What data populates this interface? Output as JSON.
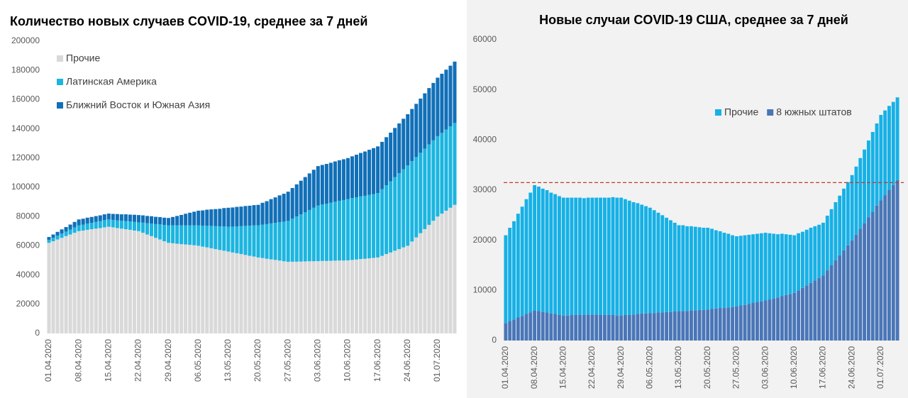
{
  "chart_data": [
    {
      "type": "stacked_bar",
      "title": "Количество новых случаев COVID-19, среднее за 7 дней",
      "categories": [
        "01.04.2020",
        null,
        null,
        null,
        null,
        null,
        null,
        "08.04.2020",
        null,
        null,
        null,
        null,
        null,
        null,
        "15.04.2020",
        null,
        null,
        null,
        null,
        null,
        null,
        "22.04.2020",
        null,
        null,
        null,
        null,
        null,
        null,
        "29.04.2020",
        null,
        null,
        null,
        null,
        null,
        null,
        "06.05.2020",
        null,
        null,
        null,
        null,
        null,
        null,
        "13.05.2020",
        null,
        null,
        null,
        null,
        null,
        null,
        "20.05.2020",
        null,
        null,
        null,
        null,
        null,
        null,
        "27.05.2020",
        null,
        null,
        null,
        null,
        null,
        null,
        "03.06.2020",
        null,
        null,
        null,
        null,
        null,
        null,
        "10.06.2020",
        null,
        null,
        null,
        null,
        null,
        null,
        "17.06.2020",
        null,
        null,
        null,
        null,
        null,
        null,
        "24.06.2020",
        null,
        null,
        null,
        null,
        null,
        null,
        "01.07.2020",
        null,
        null,
        null,
        null
      ],
      "series": [
        {
          "name": "Прочие",
          "color": "#d9d9d9",
          "values": [
            62000,
            63100,
            64300,
            65400,
            66600,
            67700,
            68900,
            70000,
            70400,
            70900,
            71300,
            71700,
            72100,
            72600,
            73000,
            72600,
            72100,
            71700,
            71300,
            70900,
            70400,
            70000,
            68900,
            67700,
            66600,
            65400,
            64300,
            63100,
            62000,
            61700,
            61400,
            61100,
            60900,
            60600,
            60300,
            60000,
            59400,
            58900,
            58300,
            57700,
            57100,
            56600,
            56000,
            55400,
            54900,
            54300,
            53700,
            53100,
            52600,
            52000,
            51600,
            51100,
            50700,
            50300,
            49900,
            49400,
            49000,
            49100,
            49100,
            49200,
            49300,
            49400,
            49400,
            49500,
            49600,
            49600,
            49700,
            49800,
            49900,
            49900,
            50000,
            50300,
            50600,
            50900,
            51100,
            51400,
            51700,
            52000,
            53100,
            54300,
            55400,
            56600,
            57700,
            58900,
            60000,
            62900,
            65700,
            68600,
            71400,
            74300,
            77100,
            80000,
            82000,
            84000,
            86000,
            88000
          ]
        },
        {
          "name": "Латинская Америка",
          "color": "#1cb5e0",
          "values": [
            2000,
            2300,
            2600,
            2900,
            3100,
            3400,
            3700,
            4000,
            4100,
            4300,
            4400,
            4600,
            4700,
            4900,
            5000,
            5100,
            5300,
            5400,
            5600,
            5700,
            5900,
            6000,
            6900,
            7700,
            8600,
            9400,
            10300,
            11100,
            12000,
            12300,
            12600,
            12900,
            13100,
            13400,
            13700,
            14000,
            14400,
            14900,
            15300,
            15700,
            16100,
            16600,
            17000,
            17700,
            18400,
            19100,
            19900,
            20600,
            21300,
            22000,
            22900,
            23700,
            24600,
            25400,
            26300,
            27100,
            28000,
            29400,
            30900,
            32300,
            33700,
            35100,
            36600,
            38000,
            38600,
            39100,
            39700,
            40300,
            40900,
            41400,
            42000,
            42300,
            42600,
            42900,
            43100,
            43400,
            43700,
            44000,
            45600,
            47100,
            48700,
            50300,
            51900,
            53400,
            55000,
            55000,
            55000,
            55000,
            55000,
            55000,
            55000,
            55000,
            55200,
            55500,
            55700,
            56000
          ]
        },
        {
          "name": "Ближний Восток и Южная Азия",
          "color": "#1170b8",
          "values": [
            2000,
            2300,
            2600,
            2900,
            3100,
            3400,
            3700,
            4000,
            4000,
            4000,
            4000,
            4000,
            4000,
            4000,
            4000,
            4100,
            4300,
            4400,
            4600,
            4700,
            4900,
            5000,
            5000,
            5000,
            5000,
            5000,
            5000,
            5000,
            5000,
            5700,
            6400,
            7100,
            7900,
            8600,
            9300,
            10000,
            10400,
            10900,
            11300,
            11700,
            12100,
            12600,
            13000,
            13100,
            13300,
            13400,
            13600,
            13700,
            13900,
            14000,
            14900,
            15700,
            16600,
            17400,
            18300,
            19100,
            20000,
            21000,
            22000,
            23000,
            24000,
            25000,
            26000,
            27000,
            27100,
            27300,
            27400,
            27600,
            27700,
            27900,
            28000,
            28600,
            29100,
            29700,
            30300,
            30900,
            31400,
            32000,
            32400,
            32900,
            33300,
            33700,
            34100,
            34600,
            35000,
            35700,
            36400,
            37100,
            37900,
            38600,
            39300,
            40000,
            40500,
            41000,
            41500,
            42000
          ]
        }
      ],
      "ylim": [
        0,
        200000
      ],
      "yticks": [
        0,
        20000,
        40000,
        60000,
        80000,
        100000,
        120000,
        140000,
        160000,
        180000,
        200000
      ],
      "grid": false,
      "legend_position": "upper left",
      "legend_layout": "vertical"
    },
    {
      "type": "stacked_bar",
      "title": "Новые случаи COVID-19  США, среднее за 7 дней",
      "categories": [
        "01.04.2020",
        null,
        null,
        null,
        null,
        null,
        null,
        "08.04.2020",
        null,
        null,
        null,
        null,
        null,
        null,
        "15.04.2020",
        null,
        null,
        null,
        null,
        null,
        null,
        "22.04.2020",
        null,
        null,
        null,
        null,
        null,
        null,
        "29.04.2020",
        null,
        null,
        null,
        null,
        null,
        null,
        "06.05.2020",
        null,
        null,
        null,
        null,
        null,
        null,
        "13.05.2020",
        null,
        null,
        null,
        null,
        null,
        null,
        "20.05.2020",
        null,
        null,
        null,
        null,
        null,
        null,
        "27.05.2020",
        null,
        null,
        null,
        null,
        null,
        null,
        "03.06.2020",
        null,
        null,
        null,
        null,
        null,
        null,
        "10.06.2020",
        null,
        null,
        null,
        null,
        null,
        null,
        "17.06.2020",
        null,
        null,
        null,
        null,
        null,
        null,
        "24.06.2020",
        null,
        null,
        null,
        null,
        null,
        null,
        "01.07.2020",
        null,
        null,
        null,
        null
      ],
      "series": [
        {
          "name": "8 южных штатов",
          "color": "#4a76b8",
          "values": [
            3500,
            3900,
            4200,
            4600,
            4900,
            5300,
            5600,
            6000,
            5900,
            5700,
            5600,
            5400,
            5300,
            5100,
            5000,
            5000,
            5100,
            5100,
            5100,
            5100,
            5200,
            5200,
            5200,
            5100,
            5100,
            5100,
            5100,
            5000,
            5000,
            5100,
            5100,
            5200,
            5300,
            5400,
            5400,
            5500,
            5500,
            5600,
            5600,
            5700,
            5700,
            5800,
            5800,
            5900,
            5900,
            6000,
            6000,
            6100,
            6100,
            6200,
            6300,
            6400,
            6500,
            6500,
            6600,
            6700,
            6800,
            7000,
            7100,
            7300,
            7500,
            7700,
            7800,
            8000,
            8200,
            8400,
            8600,
            8900,
            9100,
            9300,
            9500,
            10000,
            10500,
            11000,
            11500,
            12000,
            12500,
            13000,
            14000,
            15000,
            16000,
            17000,
            18000,
            19000,
            20000,
            21100,
            22300,
            23400,
            24600,
            25700,
            26900,
            28000,
            29000,
            30000,
            31000,
            32000
          ]
        },
        {
          "name": "Прочие",
          "color": "#16b1e6",
          "values": [
            17500,
            18600,
            19600,
            20700,
            21800,
            22900,
            23900,
            25000,
            24800,
            24600,
            24400,
            24100,
            23900,
            23700,
            23500,
            23500,
            23400,
            23400,
            23400,
            23300,
            23300,
            23300,
            23300,
            23400,
            23400,
            23400,
            23500,
            23500,
            23500,
            23100,
            22800,
            22400,
            22100,
            21700,
            21400,
            21000,
            20500,
            19900,
            19400,
            18800,
            18300,
            17700,
            17200,
            17100,
            16900,
            16800,
            16700,
            16500,
            16400,
            16300,
            16000,
            15600,
            15300,
            15000,
            14700,
            14300,
            14000,
            13900,
            13900,
            13800,
            13700,
            13600,
            13600,
            13500,
            13200,
            12900,
            12600,
            12400,
            12100,
            11800,
            11500,
            11400,
            11200,
            11100,
            11000,
            10800,
            10600,
            10500,
            10900,
            11200,
            11600,
            11900,
            12300,
            12600,
            13000,
            13600,
            14100,
            14700,
            15300,
            15900,
            16400,
            17000,
            16900,
            16800,
            16600,
            16500
          ]
        }
      ],
      "reference_line": 31500,
      "ylim": [
        0,
        60000
      ],
      "yticks": [
        0,
        10000,
        20000,
        30000,
        40000,
        50000,
        60000
      ],
      "grid": false,
      "legend_position": "center right",
      "legend_layout": "horizontal",
      "legend_reverse": true
    }
  ]
}
